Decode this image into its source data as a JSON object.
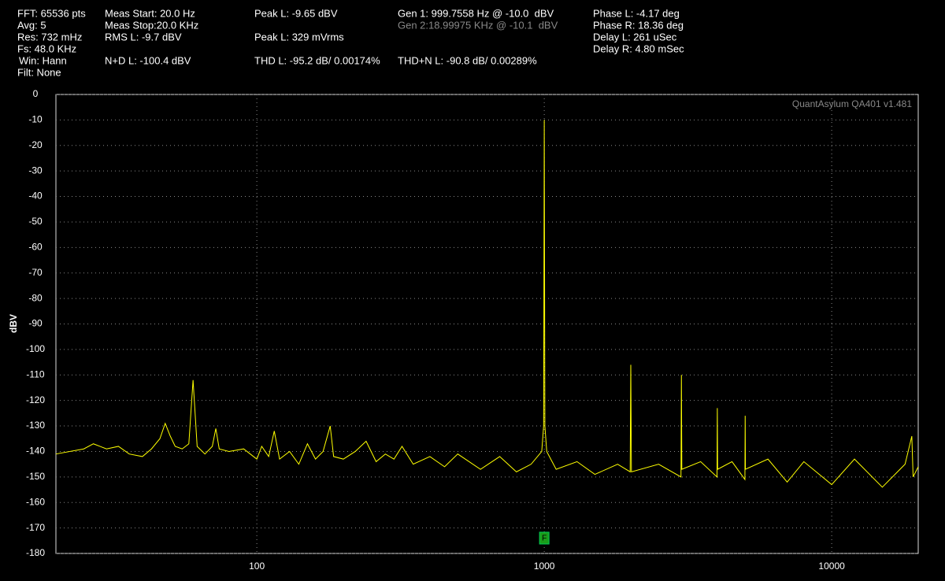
{
  "chart_data": {
    "type": "line",
    "info": [
      "FFT: 65536 pts",
      "Avg: 5",
      "Res: 732 mHz",
      "Fs: 48.0 KHz",
      "Win: Hann",
      "Filt: None",
      "Meas Start: 20.0 Hz",
      "Meas Stop:20.0 KHz",
      "RMS L: -9.7 dBV",
      "N+D L: -100.4 dBV",
      "Peak L: -9.65 dBV",
      "Peak L: 329 mVrms",
      "THD L: -95.2 dB/ 0.00174%",
      "Gen 1: 999.7558 Hz @ -10.0  dBV",
      "Gen 2:18.99975 KHz @ -10.1  dBV",
      "THD+N L: -90.8 dB/ 0.00289%",
      "Phase L: -4.17 deg",
      "Phase R: 18.36 deg",
      "Delay L: 261 uSec",
      "Delay R: 4.80 mSec"
    ],
    "watermark": "QuantAsylum QA401 v1.481",
    "y_label": "dBV",
    "x_scale": "log",
    "grid": true,
    "color": "#ffff00",
    "xlim": [
      20,
      20000
    ],
    "ylim": [
      -180,
      0
    ],
    "xticks": [
      100,
      1000,
      10000
    ],
    "yticks": [
      0,
      -10,
      -20,
      -30,
      -40,
      -50,
      -60,
      -70,
      -80,
      -90,
      -100,
      -110,
      -120,
      -130,
      -140,
      -150,
      -160,
      -170,
      -180
    ],
    "markers": [
      {
        "label": "F",
        "x": 1000
      }
    ],
    "x": [
      20,
      25,
      27,
      30,
      33,
      36,
      40,
      43,
      46,
      48,
      50,
      52,
      55,
      58,
      60,
      62,
      66,
      70,
      72,
      74,
      80,
      90,
      100,
      104,
      110,
      115,
      120,
      130,
      140,
      150,
      160,
      170,
      180,
      185,
      200,
      220,
      240,
      260,
      280,
      300,
      320,
      350,
      400,
      450,
      500,
      600,
      700,
      800,
      900,
      980,
      995,
      1000,
      1005,
      1020,
      1100,
      1300,
      1500,
      1800,
      1990,
      2000,
      2010,
      2500,
      2990,
      3000,
      3010,
      3500,
      3990,
      4000,
      4010,
      4500,
      4990,
      5000,
      5010,
      6000,
      7000,
      8000,
      10000,
      12000,
      15000,
      18000,
      19000,
      19200,
      20000
    ],
    "values": [
      -141,
      -139,
      -137,
      -139,
      -138,
      -141,
      -142,
      -139,
      -135,
      -129,
      -134,
      -138,
      -139,
      -137,
      -112,
      -138,
      -141,
      -138,
      -131,
      -139,
      -140,
      -139,
      -143,
      -138,
      -142,
      -132,
      -143,
      -140,
      -145,
      -137,
      -143,
      -140,
      -130,
      -142,
      -143,
      -140,
      -136,
      -144,
      -141,
      -143,
      -138,
      -145,
      -142,
      -146,
      -141,
      -147,
      -142,
      -148,
      -145,
      -140,
      -130,
      -10,
      -130,
      -140,
      -147,
      -144,
      -149,
      -145,
      -148,
      -106,
      -148,
      -145,
      -150,
      -110,
      -147,
      -144,
      -150,
      -123,
      -147,
      -144,
      -151,
      -126,
      -147,
      -143,
      -152,
      -144,
      -153,
      -143,
      -154,
      -145,
      -134,
      -150,
      -146
    ]
  }
}
